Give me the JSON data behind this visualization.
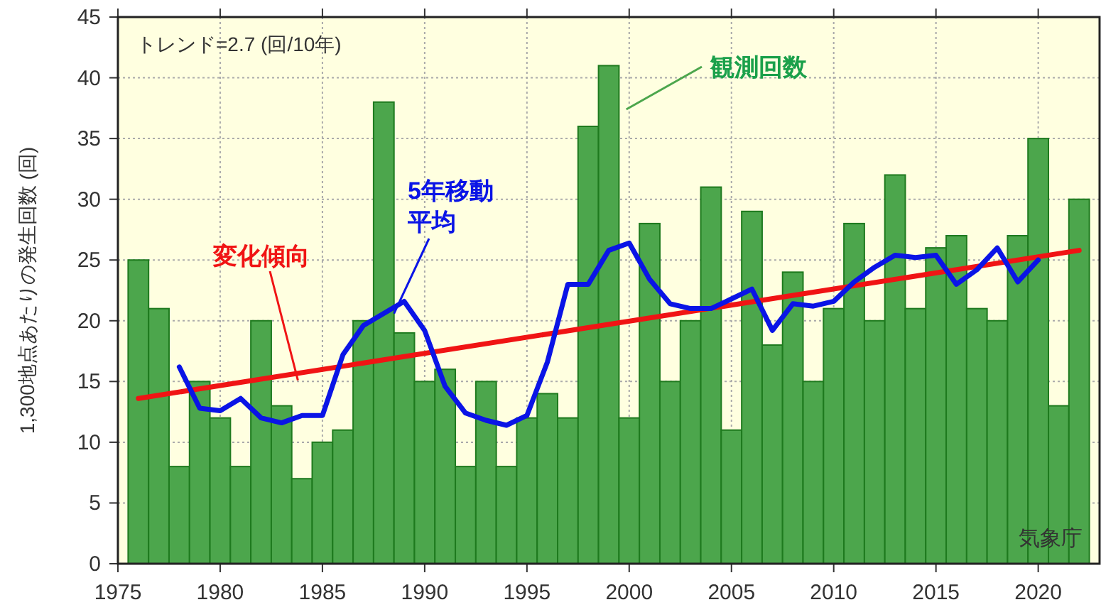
{
  "chart_data": {
    "type": "bar",
    "ylabel": "1,300地点あたりの発生回数 (回)",
    "xlim": [
      1975,
      2023
    ],
    "ylim": [
      0,
      45
    ],
    "xticks": [
      1975,
      1980,
      1985,
      1990,
      1995,
      2000,
      2005,
      2010,
      2015,
      2020
    ],
    "yticks": [
      0,
      5,
      10,
      15,
      20,
      25,
      30,
      35,
      40,
      45
    ],
    "grid": true,
    "x": [
      1976,
      1977,
      1978,
      1979,
      1980,
      1981,
      1982,
      1983,
      1984,
      1985,
      1986,
      1987,
      1988,
      1989,
      1990,
      1991,
      1992,
      1993,
      1994,
      1995,
      1996,
      1997,
      1998,
      1999,
      2000,
      2001,
      2002,
      2003,
      2004,
      2005,
      2006,
      2007,
      2008,
      2009,
      2010,
      2011,
      2012,
      2013,
      2014,
      2015,
      2016,
      2017,
      2018,
      2019,
      2020,
      2021,
      2022
    ],
    "series": [
      {
        "name": "観測回数",
        "color": "#4ca64c",
        "values": [
          25,
          21,
          8,
          15,
          12,
          8,
          20,
          13,
          7,
          10,
          11,
          20,
          38,
          19,
          15,
          16,
          8,
          15,
          8,
          12,
          14,
          12,
          36,
          41,
          12,
          28,
          15,
          20,
          31,
          11,
          29,
          18,
          24,
          15,
          21,
          28,
          20,
          32,
          21,
          26,
          27,
          21,
          20,
          27,
          35,
          13,
          30
        ]
      },
      {
        "name": "5年移動平均",
        "type": "line",
        "color": "#0a14e6",
        "x": [
          1978,
          1979,
          1980,
          1981,
          1982,
          1983,
          1984,
          1985,
          1986,
          1987,
          1988,
          1989,
          1990,
          1991,
          1992,
          1993,
          1994,
          1995,
          1996,
          1997,
          1998,
          1999,
          2000,
          2001,
          2002,
          2003,
          2004,
          2005,
          2006,
          2007,
          2008,
          2009,
          2010,
          2011,
          2012,
          2013,
          2014,
          2015,
          2016,
          2017,
          2018,
          2019,
          2020
        ],
        "values": [
          16.2,
          12.8,
          12.6,
          13.6,
          12.0,
          11.6,
          12.2,
          12.2,
          17.2,
          19.6,
          20.6,
          21.6,
          19.2,
          14.6,
          12.4,
          11.8,
          11.4,
          12.2,
          16.6,
          23,
          23,
          25.8,
          26.4,
          23.4,
          21.4,
          21,
          21,
          21.8,
          22.6,
          19.2,
          21.4,
          21.2,
          21.6,
          23.2,
          24.4,
          25.4,
          25.2,
          25.4,
          23,
          24.2,
          26,
          23.2,
          25
        ]
      },
      {
        "name": "変化傾向",
        "type": "line",
        "color": "#f01414",
        "x": [
          1976,
          2022
        ],
        "values": [
          13.6,
          25.8
        ]
      }
    ],
    "annotations": [
      "トレンド=2.7 (回/10年)",
      "気象庁"
    ]
  }
}
